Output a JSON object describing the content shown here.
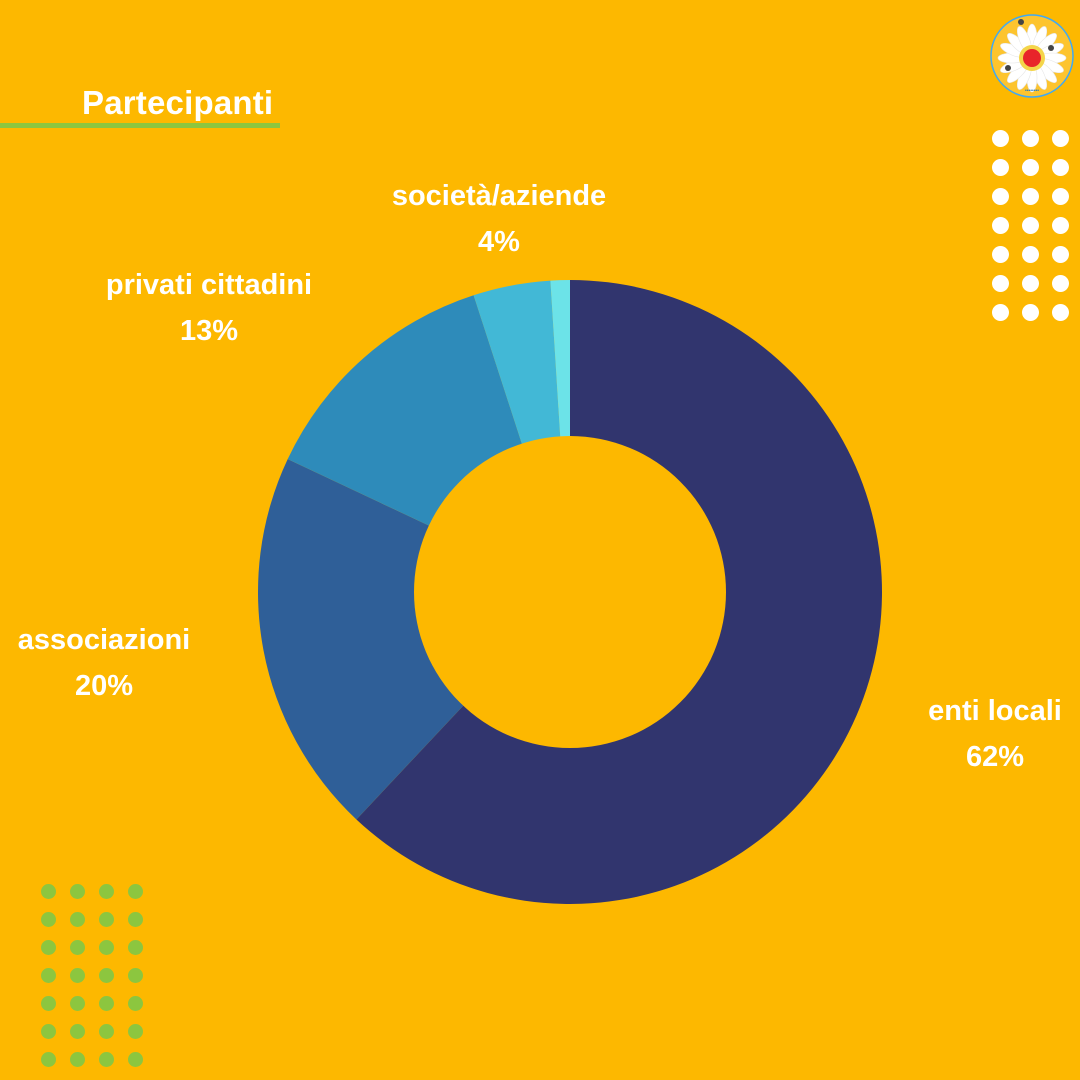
{
  "title": "Partecipanti",
  "colors": {
    "background": "#FDB800",
    "title_underline": "#8CC63F",
    "white_dots": "#FFFFFF",
    "green_dots": "#8CC63F",
    "logo_center": "#E8252A"
  },
  "logo": {
    "icon": "daisy-flower-logo"
  },
  "chart_data": {
    "type": "pie",
    "variant": "donut",
    "title": "Partecipanti",
    "slices": [
      {
        "label": "enti locali",
        "value": 62,
        "display": "62%",
        "color": "#31356E"
      },
      {
        "label": "associazioni",
        "value": 20,
        "display": "20%",
        "color": "#2F5F98"
      },
      {
        "label": "privati cittadini",
        "value": 13,
        "display": "13%",
        "color": "#2E8BBA"
      },
      {
        "label": "società/aziende",
        "value": 4,
        "display": "4%",
        "color": "#42B8D6"
      },
      {
        "label": "",
        "value": 1,
        "display": "",
        "color": "#6CE3E8"
      }
    ],
    "start_angle_deg": 0,
    "direction": "clockwise",
    "legend": "none",
    "labels": "outside"
  }
}
